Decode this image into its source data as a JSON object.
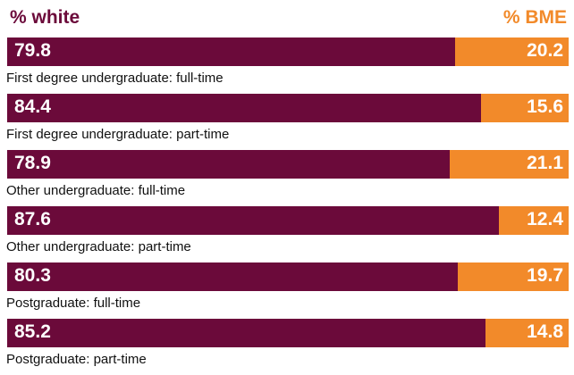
{
  "chart_data": {
    "type": "bar",
    "stacked": true,
    "orientation": "horizontal",
    "legend_left": "% white",
    "legend_right": "% BME",
    "categories": [
      "First degree undergraduate: full-time",
      "First degree undergraduate: part-time",
      "Other undergraduate: full-time",
      "Other undergraduate: part-time",
      "Postgraduate: full-time",
      "Postgraduate: part-time"
    ],
    "series": [
      {
        "name": "% white",
        "color": "#6b0a3a",
        "values": [
          79.8,
          84.4,
          78.9,
          87.6,
          80.3,
          85.2
        ]
      },
      {
        "name": "% BME",
        "color": "#f28a2a",
        "values": [
          20.2,
          15.6,
          21.1,
          12.4,
          19.7,
          14.8
        ]
      }
    ],
    "xlim": [
      0,
      100
    ]
  }
}
